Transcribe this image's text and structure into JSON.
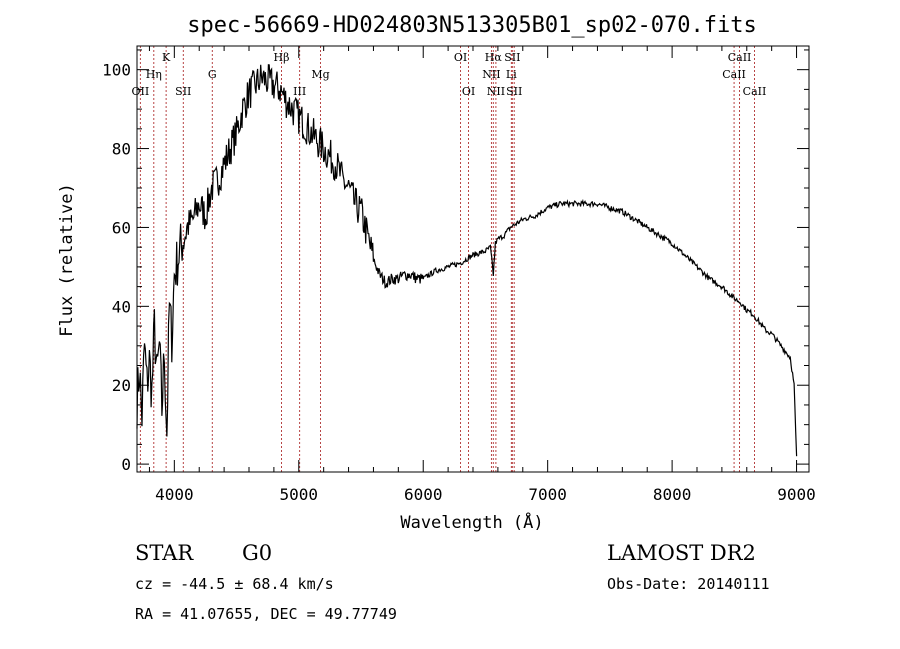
{
  "chart_data": {
    "type": "line",
    "title": "spec-56669-HD024803N513305B01_sp02-070.fits",
    "xlabel": "Wavelength (Å)",
    "ylabel": "Flux (relative)",
    "xlim": [
      3700,
      9100
    ],
    "ylim": [
      -2,
      106
    ],
    "xticks": [
      4000,
      5000,
      6000,
      7000,
      8000,
      9000
    ],
    "yticks": [
      0,
      20,
      40,
      60,
      80,
      100
    ],
    "grid": false,
    "series": [
      {
        "x": [
          3700,
          3720,
          3740,
          3760,
          3780,
          3800,
          3820,
          3840,
          3860,
          3880,
          3900,
          3920,
          3940,
          3960,
          3980,
          4000,
          4050,
          4100,
          4150,
          4200,
          4250,
          4300,
          4350,
          4400,
          4450,
          4500,
          4550,
          4600,
          4650,
          4700,
          4750,
          4800,
          4850,
          4900,
          4950,
          5000,
          5050,
          5100,
          5150,
          5200,
          5250,
          5300,
          5350,
          5400,
          5450,
          5500,
          5550,
          5600,
          5650,
          5700,
          5750,
          5800,
          5850,
          5900,
          5950,
          6000,
          6100,
          6200,
          6300,
          6400,
          6500,
          6540,
          6563,
          6580,
          6600,
          6650,
          6700,
          6800,
          6900,
          7000,
          7100,
          7200,
          7300,
          7400,
          7500,
          7600,
          7700,
          7800,
          7900,
          8000,
          8100,
          8200,
          8300,
          8400,
          8500,
          8550,
          8600,
          8650,
          8700,
          8750,
          8800,
          8850,
          8900,
          8950,
          8980,
          9000
        ],
        "values": [
          16,
          24,
          12,
          30,
          20,
          26,
          18,
          35,
          22,
          30,
          14,
          28,
          8,
          40,
          32,
          48,
          55,
          60,
          62,
          66,
          63,
          70,
          72,
          76,
          80,
          84,
          90,
          94,
          96,
          98,
          97,
          96,
          95,
          92,
          90,
          88,
          86,
          84,
          82,
          80,
          78,
          76,
          72,
          70,
          66,
          64,
          58,
          52,
          48,
          46,
          47,
          47,
          48,
          48,
          47,
          47,
          49,
          50,
          51,
          53,
          54,
          55,
          48,
          56,
          57,
          58,
          60,
          62,
          63,
          65,
          66,
          66,
          66,
          66,
          65,
          64,
          62,
          60,
          58,
          56,
          53,
          50,
          47,
          45,
          42,
          41,
          39,
          38,
          36,
          34,
          33,
          31,
          29,
          27,
          20,
          2
        ]
      }
    ],
    "lines": [
      {
        "label": "OII",
        "wl": 3727,
        "row": 3
      },
      {
        "label": "Hη",
        "wl": 3835,
        "row": 2
      },
      {
        "label": "K",
        "wl": 3934,
        "row": 1
      },
      {
        "label": "SII",
        "wl": 4072,
        "row": 3
      },
      {
        "label": "G",
        "wl": 4305,
        "row": 2
      },
      {
        "label": "Hβ",
        "wl": 4861,
        "row": 1
      },
      {
        "label": "III",
        "wl": 5007,
        "row": 3
      },
      {
        "label": "Mg",
        "wl": 5175,
        "row": 2
      },
      {
        "label": "OI",
        "wl": 6300,
        "row": 1
      },
      {
        "label": "OI",
        "wl": 6364,
        "row": 3
      },
      {
        "label": "Hα",
        "wl": 6563,
        "row": 1
      },
      {
        "label": "NII",
        "wl": 6548,
        "row": 2
      },
      {
        "label": "NII",
        "wl": 6584,
        "row": 3
      },
      {
        "label": "Li",
        "wl": 6708,
        "row": 2
      },
      {
        "label": "SII",
        "wl": 6716,
        "row": 1
      },
      {
        "label": "SII",
        "wl": 6731,
        "row": 3
      },
      {
        "label": "CaII",
        "wl": 8498,
        "row": 2
      },
      {
        "label": "CaII",
        "wl": 8542,
        "row": 1
      },
      {
        "label": "CaII",
        "wl": 8662,
        "row": 3
      }
    ]
  },
  "info": {
    "class": "STAR",
    "subclass": "G0",
    "survey": "LAMOST DR2",
    "cz": "cz = -44.5 ± 68.4 km/s",
    "obs_date": "Obs-Date: 20140111",
    "radec": "RA =  41.07655, DEC =  49.77749"
  }
}
